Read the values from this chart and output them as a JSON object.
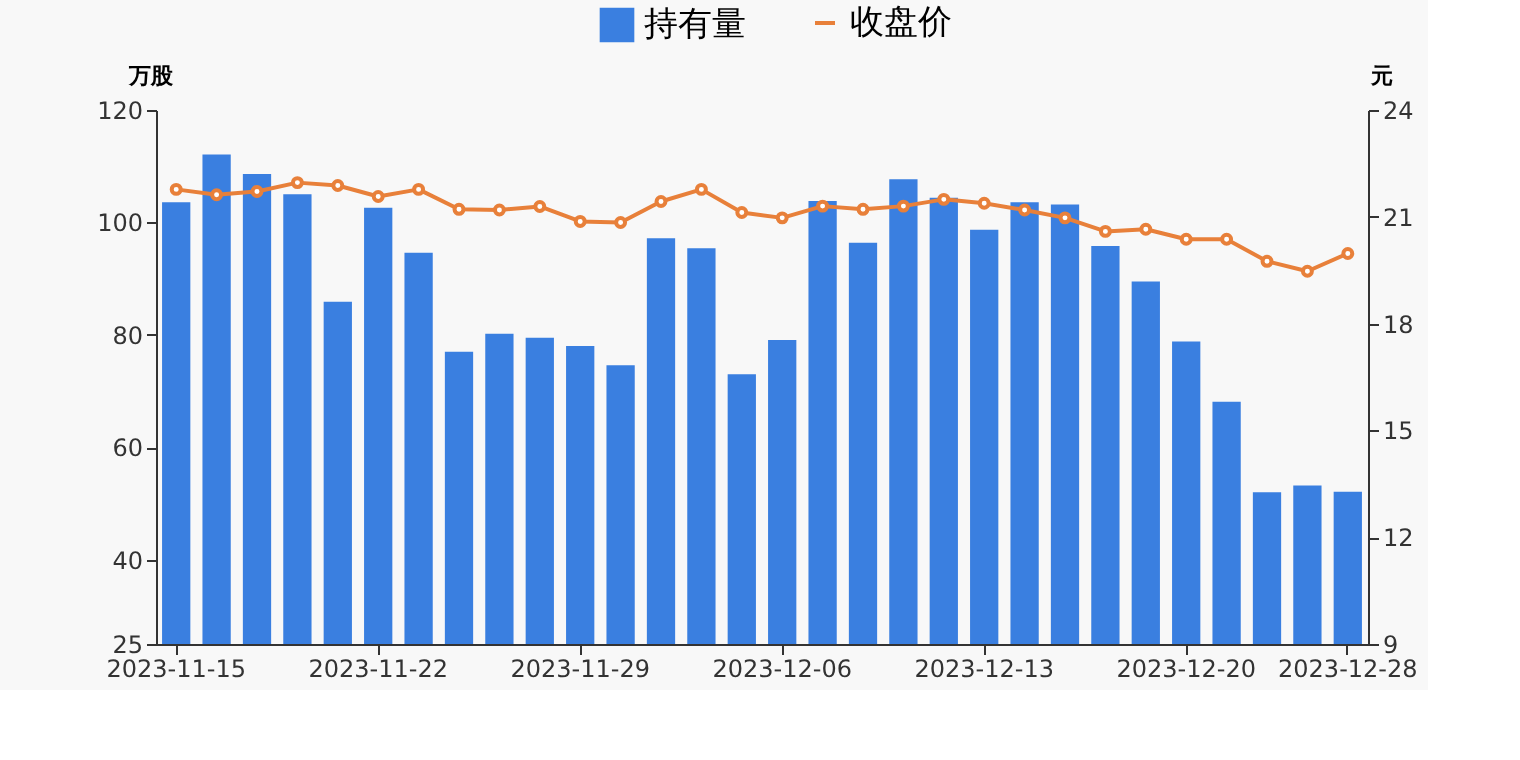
{
  "chart_data": {
    "type": "bar",
    "categories": [
      "2023-11-15",
      null,
      null,
      null,
      null,
      "2023-11-22",
      null,
      null,
      null,
      null,
      "2023-11-29",
      null,
      null,
      null,
      null,
      "2023-12-06",
      null,
      null,
      null,
      null,
      "2023-12-13",
      null,
      null,
      null,
      null,
      "2023-12-20",
      null,
      null,
      null,
      "2023-12-28"
    ],
    "ylabel": "万股",
    "y2label": "元",
    "ylim": [
      25,
      120
    ],
    "yticks": [
      25,
      40,
      60,
      80,
      100,
      120
    ],
    "y2lim": [
      9,
      24
    ],
    "y2ticks": [
      9,
      12,
      15,
      18,
      21,
      24
    ],
    "grid": false,
    "legend": "top",
    "series": [
      {
        "name": "持有量",
        "color": "#3a7fe0",
        "values": [
          103.6,
          112.1,
          108.6,
          105,
          85.9,
          102.6,
          94.6,
          77,
          80.2,
          79.5,
          78,
          74.6,
          97.2,
          95.4,
          73,
          79.1,
          103.8,
          96.4,
          107.7,
          104.4,
          98.7,
          103.6,
          103.2,
          95.8,
          89.5,
          78.8,
          68.1,
          52,
          53.2,
          52.1
        ]
      },
      {
        "name": "收盘价",
        "type": "line",
        "axis": "y2",
        "color": "#e8803a",
        "marker": "circle",
        "values": [
          21.77,
          21.62,
          21.71,
          21.96,
          21.88,
          21.57,
          21.77,
          21.21,
          21.19,
          21.29,
          20.87,
          20.84,
          21.43,
          21.77,
          21.12,
          20.97,
          21.3,
          21.21,
          21.3,
          21.49,
          21.38,
          21.19,
          20.97,
          20.59,
          20.65,
          20.37,
          20.37,
          19.75,
          19.47,
          19.97
        ]
      }
    ]
  }
}
